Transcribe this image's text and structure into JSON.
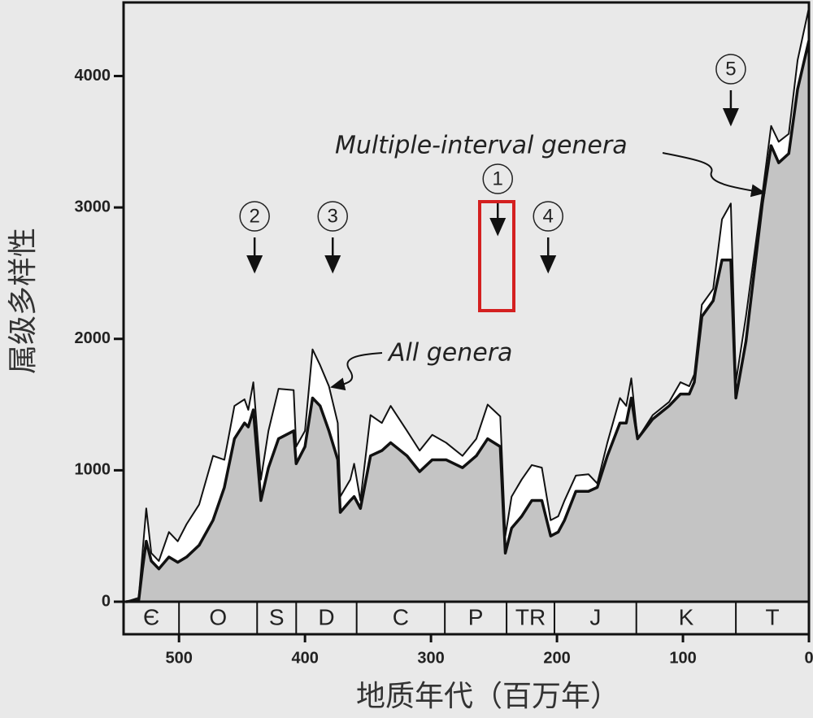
{
  "chart_data": {
    "type": "area",
    "y_label": "属级多样性",
    "x_label": "地质年代（百万年）",
    "x": [
      542,
      532,
      529,
      526,
      522,
      516,
      508,
      501,
      494,
      484,
      473,
      464,
      456,
      448,
      445,
      441,
      435,
      429,
      421,
      409,
      407,
      400,
      394,
      388,
      381,
      374,
      372,
      364,
      361,
      356,
      348,
      339,
      332,
      319,
      309,
      299,
      288,
      275,
      264,
      255,
      245,
      241,
      236,
      228,
      220,
      212,
      205,
      199,
      194,
      185,
      175,
      168,
      160,
      150,
      145,
      141,
      136,
      124,
      111,
      102,
      95,
      91,
      85,
      76,
      69,
      62,
      58,
      50,
      37,
      30,
      24,
      16,
      9,
      0
    ],
    "series": [
      {
        "name": "All genera",
        "color": "#ffffff",
        "values": [
          0,
          30,
          370,
          710,
          370,
          310,
          530,
          460,
          590,
          740,
          1110,
          1080,
          1490,
          1540,
          1460,
          1670,
          930,
          1300,
          1620,
          1610,
          1180,
          1300,
          1920,
          1800,
          1640,
          1360,
          800,
          930,
          1050,
          770,
          1420,
          1360,
          1490,
          1300,
          1150,
          1270,
          1210,
          1110,
          1240,
          1500,
          1410,
          500,
          800,
          930,
          1040,
          1020,
          620,
          650,
          770,
          960,
          970,
          900,
          1210,
          1550,
          1490,
          1700,
          1240,
          1420,
          1520,
          1670,
          1640,
          1730,
          2260,
          2380,
          2910,
          3030,
          1670,
          2170,
          3100,
          3620,
          3500,
          3560,
          4120,
          4520
        ]
      },
      {
        "name": "Multiple-interval genera",
        "color": "#c4c4c4",
        "values": [
          0,
          10,
          250,
          460,
          310,
          250,
          340,
          300,
          340,
          430,
          620,
          870,
          1240,
          1360,
          1330,
          1460,
          770,
          1020,
          1240,
          1300,
          1050,
          1180,
          1550,
          1490,
          1300,
          1080,
          680,
          770,
          800,
          710,
          1110,
          1150,
          1210,
          1110,
          990,
          1080,
          1080,
          1020,
          1110,
          1240,
          1180,
          370,
          560,
          650,
          770,
          770,
          500,
          530,
          620,
          840,
          840,
          870,
          1110,
          1360,
          1360,
          1550,
          1240,
          1390,
          1490,
          1580,
          1580,
          1670,
          2170,
          2290,
          2600,
          2600,
          1550,
          1980,
          3030,
          3470,
          3340,
          3410,
          3900,
          4270
        ]
      }
    ],
    "xlim": [
      544,
      0
    ],
    "ylim": [
      0,
      4560
    ],
    "xticks": [
      500,
      400,
      300,
      200,
      100,
      0
    ],
    "yticks": [
      0,
      1000,
      2000,
      3000,
      4000
    ],
    "period_labels": [
      "Є",
      "O",
      "S",
      "D",
      "C",
      "P",
      "TR",
      "J",
      "K",
      "T"
    ],
    "period_boundaries": [
      500,
      438,
      407,
      359,
      289,
      240,
      202,
      137,
      58
    ],
    "events": [
      {
        "label": "1",
        "x": 247
      },
      {
        "label": "2",
        "x": 440
      },
      {
        "label": "3",
        "x": 378
      },
      {
        "label": "4",
        "x": 207
      },
      {
        "label": "5",
        "x": 62
      }
    ],
    "grid": false
  }
}
